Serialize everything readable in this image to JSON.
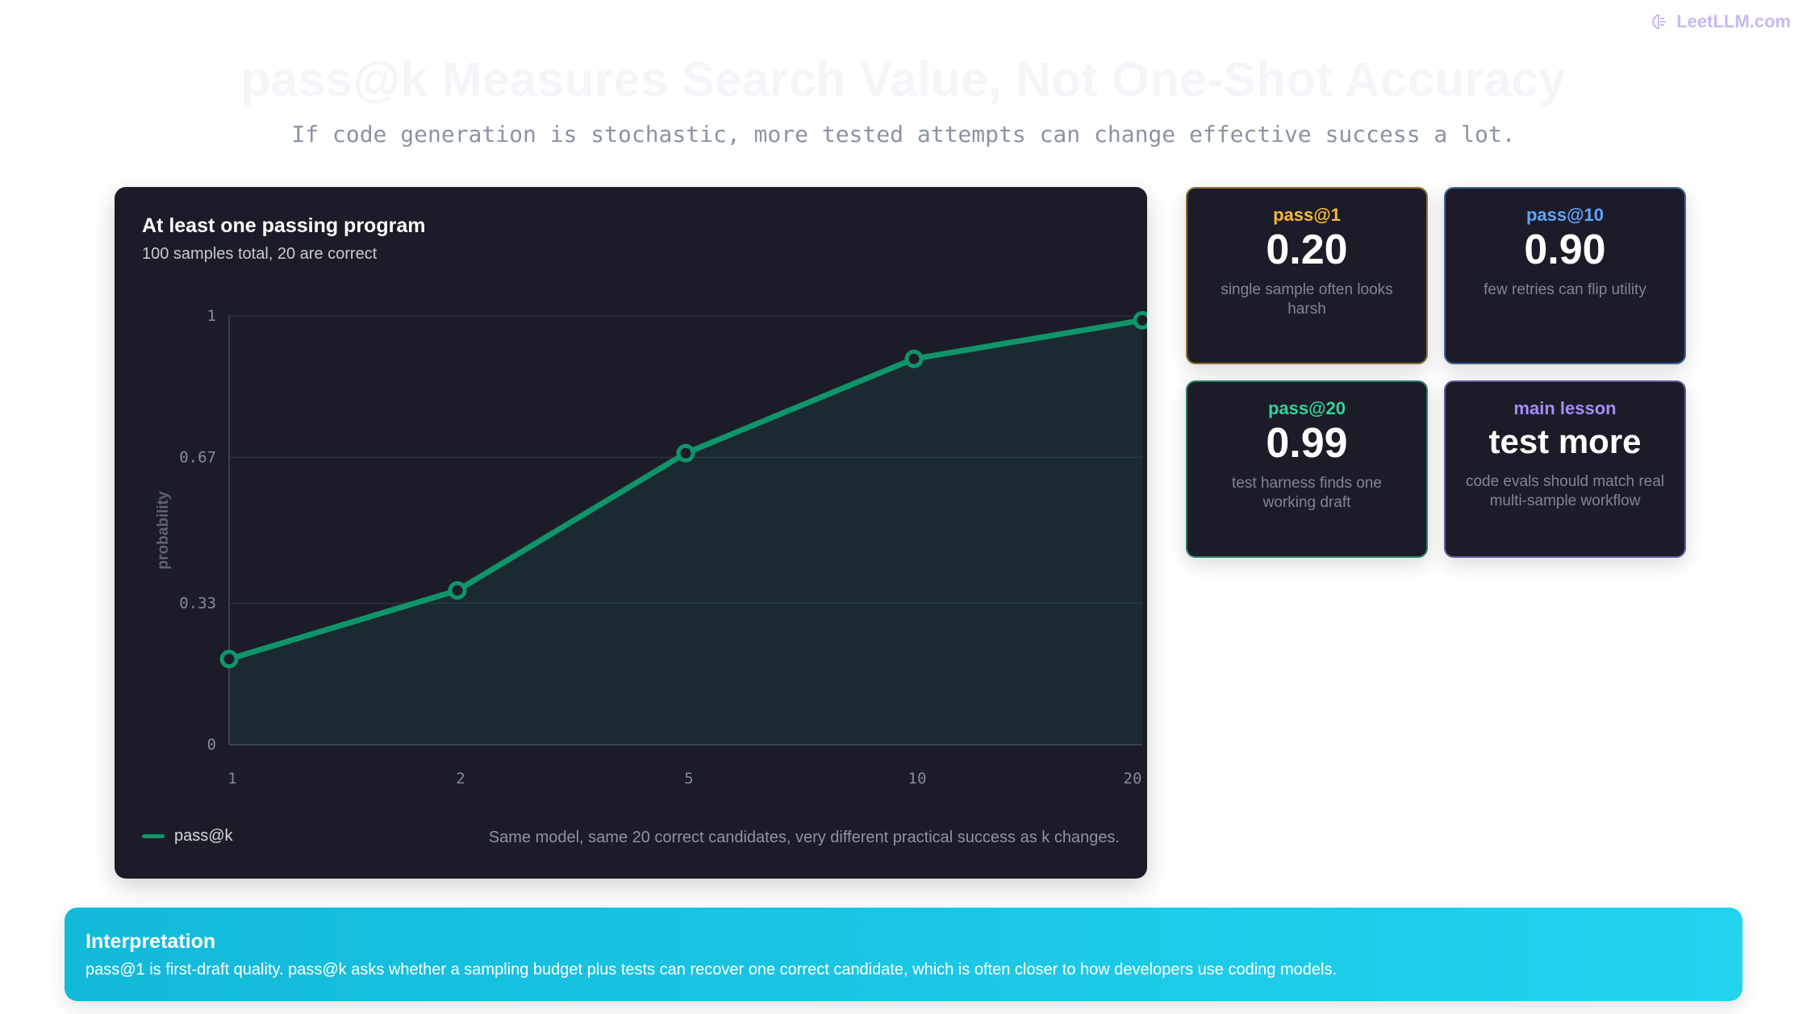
{
  "brand": {
    "text": "LeetLLM.com"
  },
  "header": {
    "title": "pass@k Measures Search Value, Not One-Shot Accuracy",
    "subtitle": "If code generation is stochastic, more tested attempts can change effective success a lot."
  },
  "chart_panel": {
    "title": "At least one passing program",
    "subtitle": "100 samples total, 20 are correct",
    "legend_label": "pass@k",
    "note": "Same model, same 20 correct candidates, very different practical success as k changes."
  },
  "chart_data": {
    "type": "line",
    "title": "At least one passing program",
    "subtitle": "100 samples total, 20 are correct",
    "xlabel": "",
    "ylabel": "probability",
    "categories": [
      "1",
      "2",
      "5",
      "10",
      "20"
    ],
    "series": [
      {
        "name": "pass@k",
        "values": [
          0.2,
          0.36,
          0.68,
          0.9,
          0.99
        ],
        "color": "#10956b"
      }
    ],
    "yticks": [
      0,
      0.33,
      0.67,
      1
    ],
    "ytick_labels": [
      "0",
      "0.33",
      "0.67",
      "1"
    ],
    "ylim": [
      0,
      1
    ],
    "grid": true,
    "area_fill": true,
    "legend_position": "bottom-left"
  },
  "cards": [
    {
      "label": "pass@1",
      "value": "0.20",
      "description": "single sample often looks harsh",
      "accent": "#f5b83d"
    },
    {
      "label": "pass@10",
      "value": "0.90",
      "description": "few retries can flip utility",
      "accent": "#60a5fa"
    },
    {
      "label": "pass@20",
      "value": "0.99",
      "description": "test harness finds one working draft",
      "accent": "#34d399"
    },
    {
      "label": "main lesson",
      "value": "test more",
      "description": "code evals should match real multi-sample workflow",
      "accent": "#a78bfa"
    }
  ],
  "interpretation": {
    "title": "Interpretation",
    "text": "pass@1 is first-draft quality. pass@k asks whether a sampling budget plus tests can recover one correct candidate, which is often closer to how developers use coding models."
  },
  "colors": {
    "panel_bg": "#1c1c28",
    "line": "#10956b",
    "interp_gradient_start": "#13b9d9",
    "interp_gradient_end": "#22d3ee"
  },
  "icons": {
    "brand": "brain-icon"
  }
}
